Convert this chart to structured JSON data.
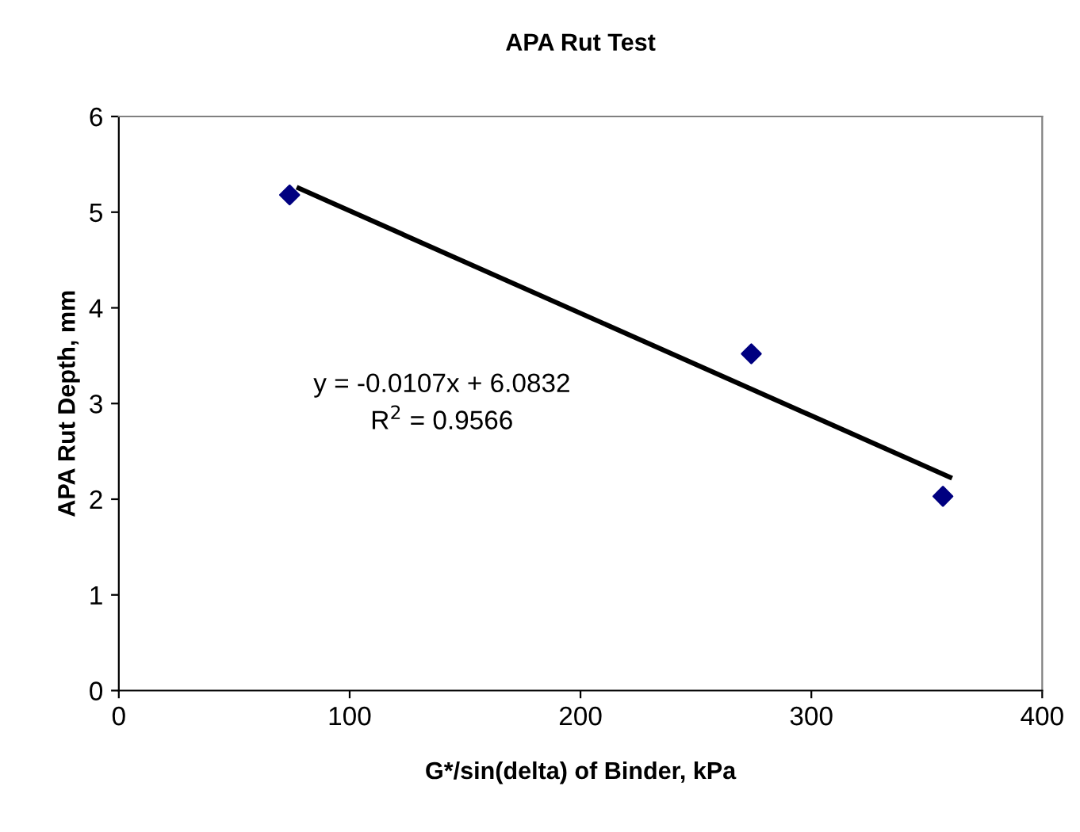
{
  "chart_data": {
    "type": "scatter",
    "title": "APA Rut Test",
    "xlabel": "G*/sin(delta) of Binder, kPa",
    "ylabel": "APA Rut Depth, mm",
    "xlim": [
      0,
      400
    ],
    "xticks": [
      0,
      100,
      200,
      300,
      400
    ],
    "ylim": [
      0,
      6
    ],
    "yticks": [
      0,
      1,
      2,
      3,
      4,
      5,
      6
    ],
    "grid": false,
    "legend": false,
    "series": [
      {
        "marker": "diamond",
        "color": "#000080",
        "x": [
          74,
          274,
          357
        ],
        "values": [
          5.18,
          3.52,
          2.03
        ]
      },
      {
        "type": "line",
        "color": "#000000",
        "x": [
          78,
          360
        ],
        "values": [
          5.25,
          2.23
        ],
        "line_style": "solid"
      }
    ],
    "annotations": [
      "y = -0.0107x + 6.0832",
      "R$^{2}$ = 0.9566"
    ]
  }
}
